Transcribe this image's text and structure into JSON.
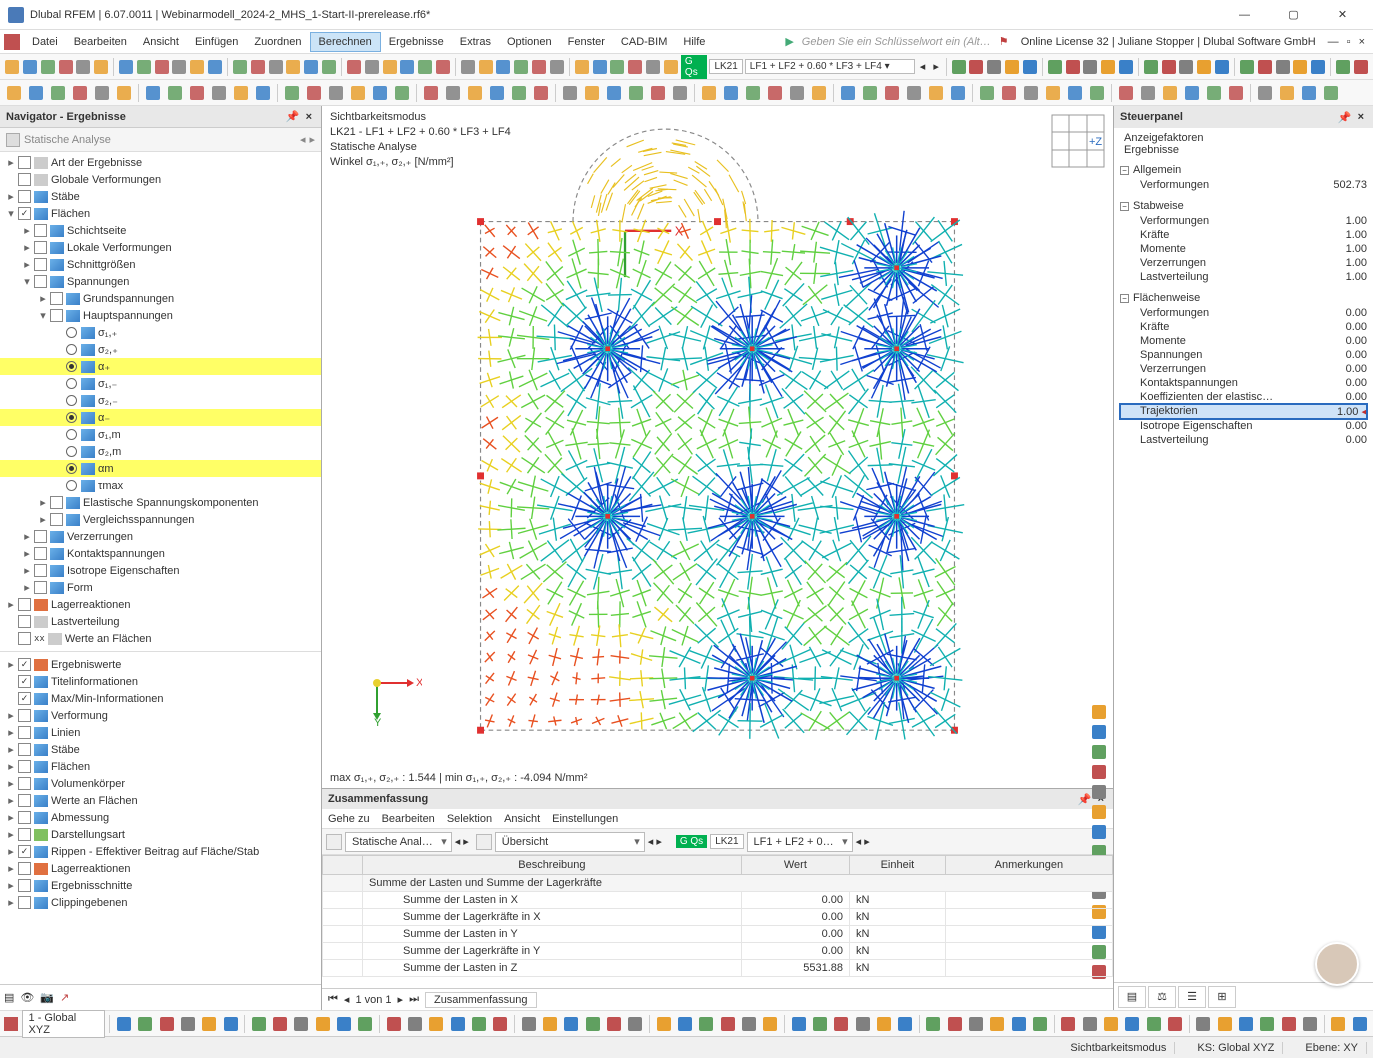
{
  "window": {
    "title": "Dlubal RFEM | 6.07.0011 | Webinarmodell_2024-2_MHS_1-Start-II-prerelease.rf6*"
  },
  "menu": [
    "Datei",
    "Bearbeiten",
    "Ansicht",
    "Einfügen",
    "Zuordnen",
    "Berechnen",
    "Ergebnisse",
    "Extras",
    "Optionen",
    "Fenster",
    "CAD-BIM",
    "Hilfe"
  ],
  "menu_active": "Berechnen",
  "search_hint": "Geben Sie ein Schlüsselwort ein (Alt…",
  "license": "Online License 32 | Juliane Stopper | Dlubal Software GmbH",
  "toolbar_lc": {
    "badge": "G Qs",
    "lk": "LK21",
    "combo": "LF1 + LF2 + 0.60 * LF3 + LF4"
  },
  "navigator": {
    "title": "Navigator - Ergebnisse",
    "select": "Statische Analyse",
    "tree": [
      {
        "d": 0,
        "tw": ">",
        "cb": 0,
        "ico": "grey",
        "t": "Art der Ergebnisse"
      },
      {
        "d": 0,
        "tw": "",
        "cb": 0,
        "ico": "grey",
        "t": "Globale Verformungen"
      },
      {
        "d": 0,
        "tw": ">",
        "cb": 0,
        "ico": "blue",
        "t": "Stäbe"
      },
      {
        "d": 0,
        "tw": "v",
        "cb": 1,
        "ico": "blue",
        "t": "Flächen"
      },
      {
        "d": 1,
        "tw": ">",
        "cb": 0,
        "ico": "blue",
        "t": "Schichtseite"
      },
      {
        "d": 1,
        "tw": ">",
        "cb": 0,
        "ico": "blue",
        "t": "Lokale Verformungen"
      },
      {
        "d": 1,
        "tw": ">",
        "cb": 0,
        "ico": "blue",
        "t": "Schnittgrößen"
      },
      {
        "d": 1,
        "tw": "v",
        "cb": 0,
        "ico": "blue",
        "t": "Spannungen"
      },
      {
        "d": 2,
        "tw": ">",
        "cb": 0,
        "ico": "blue",
        "t": "Grundspannungen"
      },
      {
        "d": 2,
        "tw": "v",
        "cb": 0,
        "ico": "blue",
        "t": "Hauptspannungen"
      },
      {
        "d": 3,
        "r": 0,
        "ico": "blue",
        "t": "σ₁,₊"
      },
      {
        "d": 3,
        "r": 0,
        "ico": "blue",
        "t": "σ₂,₊"
      },
      {
        "d": 3,
        "r": 1,
        "ico": "blue",
        "t": "α₊",
        "hl": 1
      },
      {
        "d": 3,
        "r": 0,
        "ico": "blue",
        "t": "σ₁,₋"
      },
      {
        "d": 3,
        "r": 0,
        "ico": "blue",
        "t": "σ₂,₋"
      },
      {
        "d": 3,
        "r": 1,
        "ico": "blue",
        "t": "α₋",
        "hl": 1
      },
      {
        "d": 3,
        "r": 0,
        "ico": "blue",
        "t": "σ₁,m"
      },
      {
        "d": 3,
        "r": 0,
        "ico": "blue",
        "t": "σ₂,m"
      },
      {
        "d": 3,
        "r": 1,
        "ico": "blue",
        "t": "αm",
        "hl": 1
      },
      {
        "d": 3,
        "r": 0,
        "ico": "blue",
        "t": "τmax"
      },
      {
        "d": 2,
        "tw": ">",
        "cb": 0,
        "ico": "blue",
        "t": "Elastische Spannungskomponenten"
      },
      {
        "d": 2,
        "tw": ">",
        "cb": 0,
        "ico": "blue",
        "t": "Vergleichsspannungen"
      },
      {
        "d": 1,
        "tw": ">",
        "cb": 0,
        "ico": "blue",
        "t": "Verzerrungen"
      },
      {
        "d": 1,
        "tw": ">",
        "cb": 0,
        "ico": "blue",
        "t": "Kontaktspannungen"
      },
      {
        "d": 1,
        "tw": ">",
        "cb": 0,
        "ico": "blue",
        "t": "Isotrope Eigenschaften"
      },
      {
        "d": 1,
        "tw": ">",
        "cb": 0,
        "ico": "blue",
        "t": "Form"
      },
      {
        "d": 0,
        "tw": ">",
        "cb": 0,
        "ico": "red",
        "t": "Lagerreaktionen"
      },
      {
        "d": 0,
        "tw": "",
        "cb": 0,
        "ico": "grey",
        "t": "Lastverteilung"
      },
      {
        "d": 0,
        "tw": "",
        "cb": 0,
        "ico": "grey",
        "t": "Werte an Flächen",
        "xx": 1
      }
    ],
    "tree2": [
      {
        "d": 0,
        "tw": ">",
        "cb": 1,
        "ico": "red",
        "t": "Ergebniswerte"
      },
      {
        "d": 0,
        "tw": "",
        "cb": 1,
        "ico": "blue",
        "t": "Titelinformationen"
      },
      {
        "d": 0,
        "tw": "",
        "cb": 1,
        "ico": "blue",
        "t": "Max/Min-Informationen"
      },
      {
        "d": 0,
        "tw": ">",
        "cb": 0,
        "ico": "blue",
        "t": "Verformung"
      },
      {
        "d": 0,
        "tw": ">",
        "cb": 0,
        "ico": "blue",
        "t": "Linien"
      },
      {
        "d": 0,
        "tw": ">",
        "cb": 0,
        "ico": "blue",
        "t": "Stäbe"
      },
      {
        "d": 0,
        "tw": ">",
        "cb": 0,
        "ico": "blue",
        "t": "Flächen"
      },
      {
        "d": 0,
        "tw": ">",
        "cb": 0,
        "ico": "blue",
        "t": "Volumenkörper"
      },
      {
        "d": 0,
        "tw": ">",
        "cb": 0,
        "ico": "blue",
        "t": "Werte an Flächen"
      },
      {
        "d": 0,
        "tw": ">",
        "cb": 0,
        "ico": "blue",
        "t": "Abmessung"
      },
      {
        "d": 0,
        "tw": ">",
        "cb": 0,
        "ico": "green",
        "t": "Darstellungsart"
      },
      {
        "d": 0,
        "tw": ">",
        "cb": 1,
        "ico": "blue",
        "t": "Rippen - Effektiver Beitrag auf Fläche/Stab"
      },
      {
        "d": 0,
        "tw": ">",
        "cb": 0,
        "ico": "red",
        "t": "Lagerreaktionen"
      },
      {
        "d": 0,
        "tw": ">",
        "cb": 0,
        "ico": "blue",
        "t": "Ergebnisschnitte"
      },
      {
        "d": 0,
        "tw": ">",
        "cb": 0,
        "ico": "blue",
        "t": "Clippingebenen"
      }
    ]
  },
  "viewport": {
    "l1": "Sichtbarkeitsmodus",
    "l2": "LK21 - LF1 + LF2 + 0.60 * LF3 + LF4",
    "l3": "Statische Analyse",
    "l4": "Winkel σ₁,₊, σ₂,₊ [N/mm²]",
    "bottom": "max σ₁,₊, σ₂,₊ : 1.544 | min σ₁,₊, σ₂,₊ : -4.094 N/mm²"
  },
  "summary": {
    "title": "Zusammenfassung",
    "menu": [
      "Gehe zu",
      "Bearbeiten",
      "Selektion",
      "Ansicht",
      "Einstellungen"
    ],
    "combo1": "Statische Anal…",
    "combo2": "Übersicht",
    "lc": "LK21",
    "lcc": "LF1 + LF2 + 0…",
    "cols": [
      "Beschreibung",
      "Wert",
      "Einheit",
      "Anmerkungen"
    ],
    "grp": "Summe der Lasten und Summe der Lagerkräfte",
    "rows": [
      [
        "Summe der Lasten in X",
        "0.00",
        "kN",
        ""
      ],
      [
        "Summe der Lagerkräfte in X",
        "0.00",
        "kN",
        ""
      ],
      [
        "Summe der Lasten in Y",
        "0.00",
        "kN",
        ""
      ],
      [
        "Summe der Lagerkräfte in Y",
        "0.00",
        "kN",
        ""
      ],
      [
        "Summe der Lasten in Z",
        "5531.88",
        "kN",
        ""
      ]
    ],
    "pager": "1 von 1",
    "tab": "Zusammenfassung"
  },
  "panel": {
    "title": "Steuerpanel",
    "sub1": "Anzeigefaktoren",
    "sub2": "Ergebnisse",
    "groups": [
      {
        "h": "Allgemein",
        "rows": [
          [
            "Verformungen",
            "502.73"
          ]
        ]
      },
      {
        "h": "Stabweise",
        "rows": [
          [
            "Verformungen",
            "1.00"
          ],
          [
            "Kräfte",
            "1.00"
          ],
          [
            "Momente",
            "1.00"
          ],
          [
            "Verzerrungen",
            "1.00"
          ],
          [
            "Lastverteilung",
            "1.00"
          ]
        ]
      },
      {
        "h": "Flächenweise",
        "rows": [
          [
            "Verformungen",
            "0.00"
          ],
          [
            "Kräfte",
            "0.00"
          ],
          [
            "Momente",
            "0.00"
          ],
          [
            "Spannungen",
            "0.00"
          ],
          [
            "Verzerrungen",
            "0.00"
          ],
          [
            "Kontaktspannungen",
            "0.00"
          ],
          [
            "Koeffizienten der elastisc…",
            "0.00"
          ],
          [
            "Trajektorien",
            "1.00"
          ],
          [
            "Isotrope Eigenschaften",
            "0.00"
          ],
          [
            "Lastverteilung",
            "0.00"
          ]
        ],
        "sel": 7
      }
    ]
  },
  "status": {
    "coord": "1 - Global XYZ",
    "items": [
      "Sichtbarkeitsmodus",
      "KS: Global XYZ",
      "Ebene: XY"
    ]
  },
  "colors": {
    "toolbar_icons": [
      "#e8a030",
      "#3a80c8",
      "#60a060",
      "#c05050",
      "#808080"
    ]
  }
}
